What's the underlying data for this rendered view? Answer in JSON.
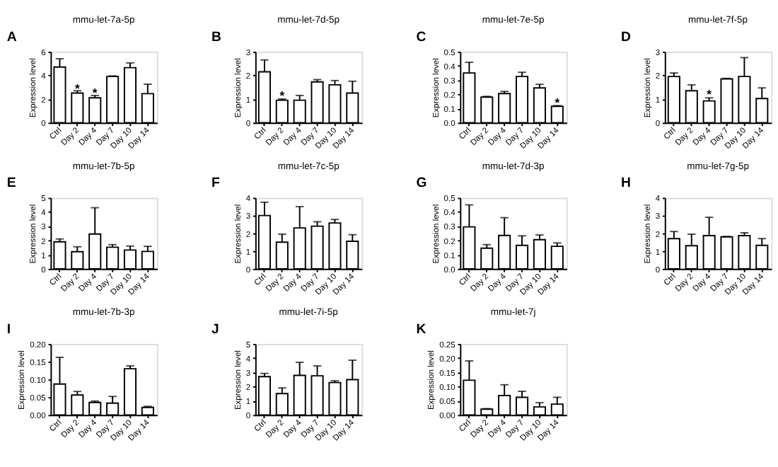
{
  "chart_data": [
    {
      "type": "bar",
      "title": "mmu-let-7a-5p",
      "ylabel": "Expression level",
      "annotations": [
        "A",
        {
          "text": "*",
          "x": "Day 2",
          "y": 2.9
        },
        {
          "text": "*",
          "x": "Day 4",
          "y": 2.5
        }
      ],
      "categories": [
        "Ctrl",
        "Day 2",
        "Day 4",
        "Day 7",
        "Day 10",
        "Day 14"
      ],
      "color": "#ffffff",
      "values": [
        4.7,
        2.5,
        2.1,
        3.9,
        4.65,
        2.45
      ],
      "errors": [
        [
          4.7,
          5.4
        ],
        [
          2.5,
          2.7
        ],
        [
          2.1,
          2.3
        ],
        [
          3.9,
          3.95
        ],
        [
          4.65,
          5.05
        ],
        [
          2.45,
          3.25
        ]
      ],
      "ylim": [
        0,
        6
      ],
      "yticks": [
        0,
        2,
        4,
        6
      ],
      "grid": false
    },
    {
      "type": "bar",
      "title": "mmu-let-7d-5p",
      "ylabel": "Expression level",
      "annotations": [
        "B",
        {
          "text": "*",
          "x": "Day 2",
          "y": 1.15
        }
      ],
      "categories": [
        "Ctrl",
        "Day 2",
        "Day 4",
        "Day 7",
        "Day 10",
        "Day 14"
      ],
      "color": "#ffffff",
      "values": [
        2.15,
        0.95,
        0.95,
        1.72,
        1.6,
        1.25
      ],
      "errors": [
        [
          2.15,
          2.65
        ],
        [
          0.95,
          1.0
        ],
        [
          0.95,
          1.15
        ],
        [
          1.72,
          1.82
        ],
        [
          1.6,
          1.78
        ],
        [
          1.25,
          1.75
        ]
      ],
      "ylim": [
        0,
        3
      ],
      "yticks": [
        0,
        1,
        2,
        3
      ],
      "grid": false
    },
    {
      "type": "bar",
      "title": "mmu-let-7e-5p",
      "ylabel": "Expression level",
      "annotations": [
        "C",
        {
          "text": "*",
          "x": "Day 14",
          "y": 0.14
        }
      ],
      "categories": [
        "Ctrl",
        "Day 2",
        "Day 4",
        "Day 7",
        "Day 10",
        "Day 14"
      ],
      "color": "#ffffff",
      "values": [
        0.35,
        0.18,
        0.205,
        0.325,
        0.245,
        0.115
      ],
      "errors": [
        [
          0.35,
          0.425
        ],
        [
          0.18,
          0.185
        ],
        [
          0.205,
          0.22
        ],
        [
          0.325,
          0.355
        ],
        [
          0.245,
          0.27
        ],
        [
          0.115,
          0.12
        ]
      ],
      "ylim": [
        0,
        0.5
      ],
      "yticks": [
        {
          "value": 0,
          "label": "0.0"
        },
        0.1,
        0.2,
        0.3,
        0.4,
        0.5
      ],
      "grid": false
    },
    {
      "type": "bar",
      "title": "mmu-let-7f-5p",
      "ylabel": "Expression level",
      "annotations": [
        "D",
        {
          "text": "*",
          "x": "Day 4",
          "y": 1.2
        }
      ],
      "categories": [
        "Ctrl",
        "Day 2",
        "Day 4",
        "Day 7",
        "Day 10",
        "Day 14"
      ],
      "color": "#ffffff",
      "values": [
        1.95,
        1.35,
        0.92,
        1.85,
        1.95,
        1.02
      ],
      "errors": [
        [
          1.95,
          2.1
        ],
        [
          1.35,
          1.6
        ],
        [
          0.92,
          1.05
        ],
        [
          1.85,
          1.87
        ],
        [
          1.95,
          2.75
        ],
        [
          1.02,
          1.47
        ]
      ],
      "ylim": [
        0,
        3
      ],
      "yticks": [
        0,
        1,
        2,
        3
      ],
      "grid": false
    },
    {
      "type": "bar",
      "title": "mmu-let-7b-5p",
      "ylabel": "Expression level",
      "annotations": [
        "E"
      ],
      "categories": [
        "Ctrl",
        "Day 2",
        "Day 4",
        "Day 7",
        "Day 10",
        "Day 14"
      ],
      "color": "#ffffff",
      "values": [
        1.9,
        1.2,
        2.45,
        1.52,
        1.32,
        1.22
      ],
      "errors": [
        [
          1.9,
          2.1
        ],
        [
          1.2,
          1.55
        ],
        [
          2.45,
          4.3
        ],
        [
          1.52,
          1.7
        ],
        [
          1.32,
          1.6
        ],
        [
          1.22,
          1.58
        ]
      ],
      "ylim": [
        0,
        5
      ],
      "yticks": [
        0,
        1,
        2,
        3,
        4,
        5
      ],
      "grid": false
    },
    {
      "type": "bar",
      "title": "mmu-let-7c-5p",
      "ylabel": "Expression level",
      "annotations": [
        "F"
      ],
      "categories": [
        "Ctrl",
        "Day 2",
        "Day 4",
        "Day 7",
        "Day 10",
        "Day 14"
      ],
      "color": "#ffffff",
      "values": [
        3.0,
        1.5,
        2.3,
        2.4,
        2.58,
        1.55
      ],
      "errors": [
        [
          3.0,
          3.75
        ],
        [
          1.5,
          1.95
        ],
        [
          2.3,
          3.5
        ],
        [
          2.4,
          2.65
        ],
        [
          2.58,
          2.78
        ],
        [
          1.55,
          1.92
        ]
      ],
      "ylim": [
        0,
        4
      ],
      "yticks": [
        0,
        1,
        2,
        3,
        4
      ],
      "grid": false
    },
    {
      "type": "bar",
      "title": "mmu-let-7d-3p",
      "ylabel": "Expression level",
      "annotations": [
        "G"
      ],
      "categories": [
        "Ctrl",
        "Day 2",
        "Day 4",
        "Day 7",
        "Day 10",
        "Day 14"
      ],
      "color": "#ffffff",
      "values": [
        0.295,
        0.145,
        0.235,
        0.165,
        0.205,
        0.158
      ],
      "errors": [
        [
          0.295,
          0.45
        ],
        [
          0.145,
          0.17
        ],
        [
          0.235,
          0.36
        ],
        [
          0.165,
          0.232
        ],
        [
          0.205,
          0.238
        ],
        [
          0.158,
          0.182
        ]
      ],
      "ylim": [
        0,
        0.5
      ],
      "yticks": [
        {
          "value": 0,
          "label": "0.0"
        },
        0.1,
        0.2,
        0.3,
        0.4,
        0.5
      ],
      "grid": false
    },
    {
      "type": "bar",
      "title": "mmu-let-7g-5p",
      "ylabel": "Expression level",
      "annotations": [
        "H"
      ],
      "categories": [
        "Ctrl",
        "Day 2",
        "Day 4",
        "Day 7",
        "Day 10",
        "Day 14"
      ],
      "color": "#ffffff",
      "values": [
        1.7,
        1.3,
        1.87,
        1.8,
        1.87,
        1.32
      ],
      "errors": [
        [
          1.7,
          2.1
        ],
        [
          1.3,
          1.95
        ],
        [
          1.87,
          2.9
        ],
        [
          1.8,
          1.82
        ],
        [
          1.87,
          2.03
        ],
        [
          1.32,
          1.7
        ]
      ],
      "ylim": [
        0,
        4
      ],
      "yticks": [
        0,
        1,
        2,
        3,
        4
      ],
      "grid": false
    },
    {
      "type": "bar",
      "title": "mmu-let-7b-3p",
      "ylabel": "Expression level",
      "annotations": [
        "I"
      ],
      "categories": [
        "Ctrl",
        "Day 2",
        "Day 4",
        "Day 7",
        "Day 10",
        "Day 14"
      ],
      "color": "#ffffff",
      "values": [
        0.087,
        0.056,
        0.035,
        0.033,
        0.13,
        0.021
      ],
      "errors": [
        [
          0.087,
          0.162
        ],
        [
          0.056,
          0.066
        ],
        [
          0.035,
          0.039
        ],
        [
          0.033,
          0.052
        ],
        [
          0.13,
          0.138
        ],
        [
          0.021,
          0.024
        ]
      ],
      "ylim": [
        0,
        0.2
      ],
      "yticks": [
        {
          "value": 0,
          "label": "0.00"
        },
        0.05,
        {
          "value": 0.1,
          "label": "0.10"
        },
        0.15,
        {
          "value": 0.2,
          "label": "0.20"
        }
      ],
      "grid": false
    },
    {
      "type": "bar",
      "title": "mmu-let-7i-5p",
      "ylabel": "Expression level",
      "annotations": [
        "J"
      ],
      "categories": [
        "Ctrl",
        "Day 2",
        "Day 4",
        "Day 7",
        "Day 10",
        "Day 14"
      ],
      "color": "#ffffff",
      "values": [
        2.7,
        1.5,
        2.78,
        2.75,
        2.28,
        2.48
      ],
      "errors": [
        [
          2.7,
          2.92
        ],
        [
          1.5,
          1.9
        ],
        [
          2.78,
          3.7
        ],
        [
          2.75,
          3.45
        ],
        [
          2.28,
          2.4
        ],
        [
          2.48,
          3.85
        ]
      ],
      "ylim": [
        0,
        5
      ],
      "yticks": [
        0,
        1,
        2,
        3,
        4,
        5
      ],
      "grid": false
    },
    {
      "type": "bar",
      "title": "mmu-let-7j",
      "ylabel": "Expression level",
      "annotations": [
        "K"
      ],
      "categories": [
        "Ctrl",
        "Day 2",
        "Day 4",
        "Day 7",
        "Day 10",
        "Day 14"
      ],
      "color": "#ffffff",
      "values": [
        0.122,
        0.02,
        0.068,
        0.062,
        0.028,
        0.038
      ],
      "errors": [
        [
          0.122,
          0.19
        ],
        [
          0.02,
          0.022
        ],
        [
          0.068,
          0.106
        ],
        [
          0.062,
          0.083
        ],
        [
          0.028,
          0.043
        ],
        [
          0.038,
          0.062
        ]
      ],
      "ylim": [
        0,
        0.25
      ],
      "yticks": [
        {
          "value": 0,
          "label": "0.00"
        },
        0.05,
        {
          "value": 0.1,
          "label": "0.10"
        },
        0.15,
        {
          "value": 0.2,
          "label": "0.20"
        },
        0.25
      ],
      "grid": false
    }
  ]
}
